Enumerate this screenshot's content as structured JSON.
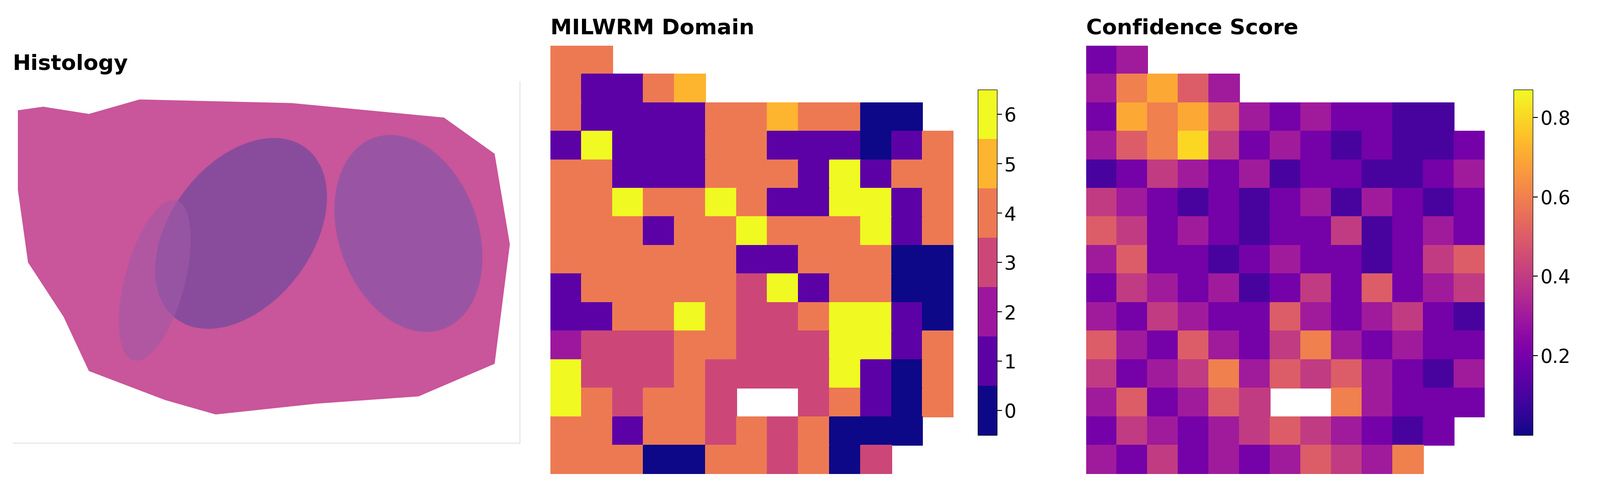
{
  "chart_data": [
    {
      "type": "image",
      "title": "Histology"
    },
    {
      "type": "heatmap",
      "title": "MILWRM Domain",
      "tick_labels": false,
      "colors": [
        "#0d0887",
        "#5c01a6",
        "#9c179e",
        "#cc4778",
        "#ed7953",
        "#fdb42f",
        "#f0f921"
      ],
      "colorbar_range": [
        -0.5,
        6.5
      ],
      "colorbar_ticks": [
        0,
        1,
        2,
        3,
        4,
        5,
        6
      ],
      "cells": [
        [
          4,
          4,
          null,
          null,
          null,
          null,
          null,
          null,
          null,
          null,
          null,
          null,
          null
        ],
        [
          4,
          1,
          1,
          4,
          5,
          null,
          null,
          null,
          null,
          null,
          null,
          null,
          null
        ],
        [
          4,
          1,
          1,
          1,
          1,
          4,
          4,
          5,
          4,
          4,
          0,
          0,
          null
        ],
        [
          1,
          6,
          1,
          1,
          1,
          4,
          4,
          1,
          1,
          1,
          0,
          1,
          4
        ],
        [
          4,
          4,
          1,
          1,
          1,
          4,
          4,
          4,
          1,
          6,
          1,
          4,
          4
        ],
        [
          4,
          4,
          6,
          4,
          4,
          6,
          4,
          1,
          1,
          6,
          6,
          1,
          4
        ],
        [
          4,
          4,
          4,
          1,
          4,
          4,
          6,
          4,
          4,
          4,
          6,
          1,
          4
        ],
        [
          4,
          4,
          4,
          4,
          4,
          4,
          1,
          1,
          4,
          4,
          4,
          0,
          0
        ],
        [
          1,
          4,
          4,
          4,
          4,
          4,
          3,
          6,
          1,
          4,
          4,
          0,
          0
        ],
        [
          1,
          1,
          4,
          4,
          6,
          4,
          3,
          3,
          4,
          6,
          6,
          1,
          0
        ],
        [
          2,
          3,
          3,
          3,
          4,
          4,
          3,
          3,
          3,
          6,
          6,
          1,
          4
        ],
        [
          6,
          3,
          3,
          3,
          4,
          3,
          3,
          3,
          3,
          6,
          1,
          0,
          4
        ],
        [
          6,
          4,
          3,
          4,
          4,
          3,
          null,
          null,
          3,
          4,
          1,
          0,
          4
        ],
        [
          4,
          4,
          1,
          4,
          4,
          3,
          4,
          3,
          4,
          0,
          0,
          0,
          null
        ],
        [
          4,
          4,
          4,
          0,
          0,
          4,
          4,
          3,
          4,
          0,
          3,
          null,
          null
        ]
      ]
    },
    {
      "type": "heatmap",
      "title": "Confidence Score",
      "tick_labels": false,
      "color": "plasma",
      "colorbar_range": [
        0.0,
        0.87
      ],
      "colorbar_ticks": [
        0.2,
        0.4,
        0.6,
        0.8
      ],
      "cells": [
        [
          0.2,
          0.3,
          null,
          null,
          null,
          null,
          null,
          null,
          null,
          null,
          null,
          null,
          null
        ],
        [
          0.3,
          0.6,
          0.7,
          0.5,
          0.3,
          null,
          null,
          null,
          null,
          null,
          null,
          null,
          null
        ],
        [
          0.2,
          0.7,
          0.6,
          0.7,
          0.5,
          0.3,
          0.2,
          0.3,
          0.2,
          0.2,
          0.1,
          0.1,
          null
        ],
        [
          0.3,
          0.5,
          0.6,
          0.8,
          0.4,
          0.2,
          0.3,
          0.2,
          0.1,
          0.2,
          0.1,
          0.1,
          0.2
        ],
        [
          0.1,
          0.2,
          0.4,
          0.3,
          0.2,
          0.3,
          0.1,
          0.2,
          0.2,
          0.1,
          0.1,
          0.2,
          0.3
        ],
        [
          0.4,
          0.3,
          0.2,
          0.1,
          0.2,
          0.1,
          0.2,
          0.3,
          0.1,
          0.3,
          0.2,
          0.1,
          0.2
        ],
        [
          0.5,
          0.4,
          0.2,
          0.3,
          0.2,
          0.1,
          0.2,
          0.2,
          0.4,
          0.1,
          0.2,
          0.3,
          0.2
        ],
        [
          0.3,
          0.5,
          0.2,
          0.2,
          0.1,
          0.2,
          0.3,
          0.2,
          0.2,
          0.1,
          0.2,
          0.4,
          0.5
        ],
        [
          0.2,
          0.4,
          0.3,
          0.2,
          0.3,
          0.1,
          0.2,
          0.4,
          0.2,
          0.5,
          0.2,
          0.3,
          0.4
        ],
        [
          0.3,
          0.2,
          0.4,
          0.3,
          0.2,
          0.2,
          0.5,
          0.3,
          0.2,
          0.3,
          0.4,
          0.2,
          0.1
        ],
        [
          0.5,
          0.3,
          0.2,
          0.5,
          0.3,
          0.2,
          0.4,
          0.6,
          0.3,
          0.2,
          0.3,
          0.2,
          0.2
        ],
        [
          0.4,
          0.2,
          0.3,
          0.4,
          0.6,
          0.3,
          0.5,
          0.4,
          0.5,
          0.3,
          0.2,
          0.1,
          0.3
        ],
        [
          0.3,
          0.5,
          0.2,
          0.3,
          0.5,
          0.4,
          null,
          null,
          0.6,
          0.3,
          0.2,
          0.2,
          0.2
        ],
        [
          0.2,
          0.4,
          0.3,
          0.2,
          0.3,
          0.4,
          0.5,
          0.4,
          0.3,
          0.2,
          0.1,
          0.2,
          null
        ],
        [
          0.3,
          0.2,
          0.4,
          0.2,
          0.3,
          0.2,
          0.3,
          0.5,
          0.4,
          0.3,
          0.6,
          null,
          null
        ]
      ]
    }
  ]
}
